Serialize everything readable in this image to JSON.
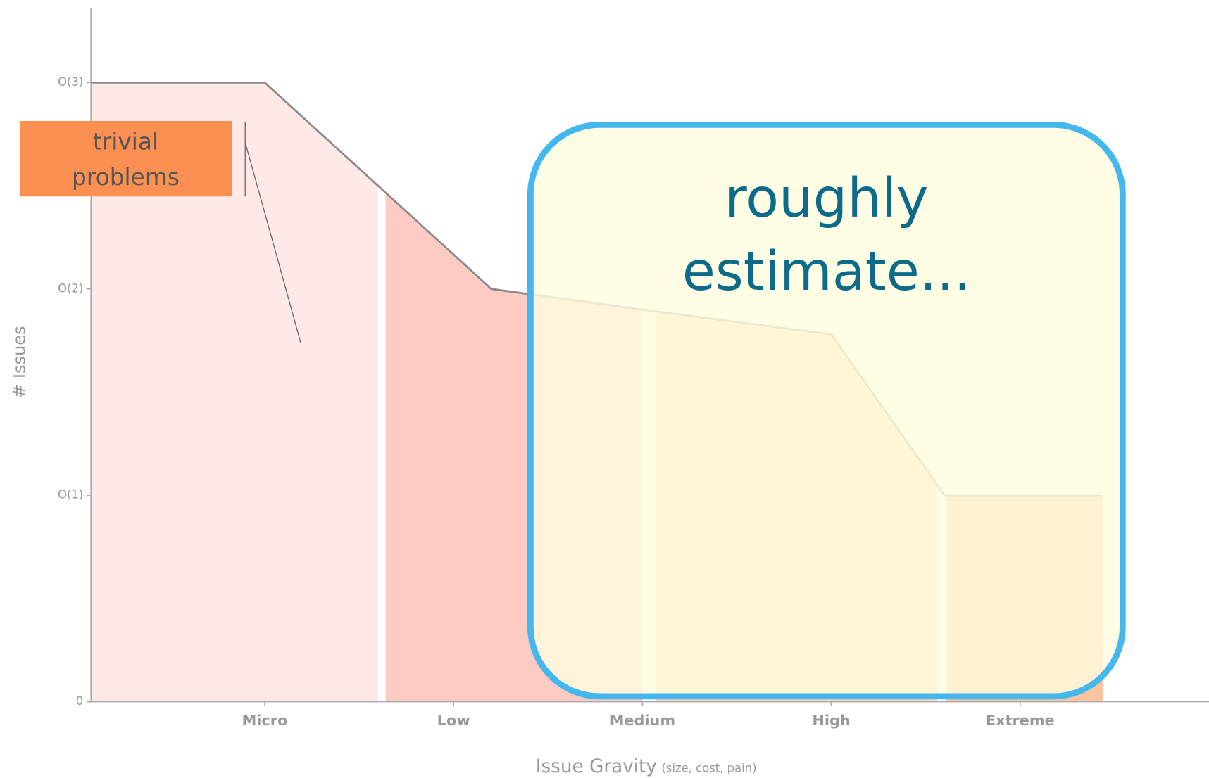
{
  "chart_data": {
    "type": "area",
    "ylabel": "# Issues",
    "xlabel": "Issue Gravity",
    "xlabel_note": "(size, cost, pain)",
    "categories": [
      "Micro",
      "Low",
      "Medium",
      "High",
      "Extreme"
    ],
    "xlim": [
      -0.92,
      5
    ],
    "ylim": [
      0,
      3.4
    ],
    "yticks": [
      0,
      {
        "value": 1,
        "label": "O(1)"
      },
      {
        "value": 2,
        "label": "O(2)"
      },
      {
        "value": 3,
        "label": "O(3)"
      }
    ],
    "series": [
      {
        "color": "#8a8a8a",
        "x": [
          -0.92,
          0,
          1.2,
          2,
          3,
          3.6,
          4.44
        ],
        "values": [
          3,
          3,
          2,
          1.9,
          1.78,
          1,
          1
        ]
      }
    ],
    "bands": [
      {
        "from": -0.92,
        "to": 0.6,
        "color": "#ffe9e6"
      },
      {
        "from": 0.64,
        "to": 2.0,
        "color": "#fdcbc4"
      },
      {
        "from": 2.07,
        "to": 3.56,
        "color": "#fdd5b8"
      },
      {
        "from": 3.61,
        "to": 4.44,
        "color": "#fdc4a0"
      }
    ],
    "annotations": {
      "trivial": "trivial problems",
      "estimate_line1": "roughly",
      "estimate_line2": "estimate..."
    }
  }
}
